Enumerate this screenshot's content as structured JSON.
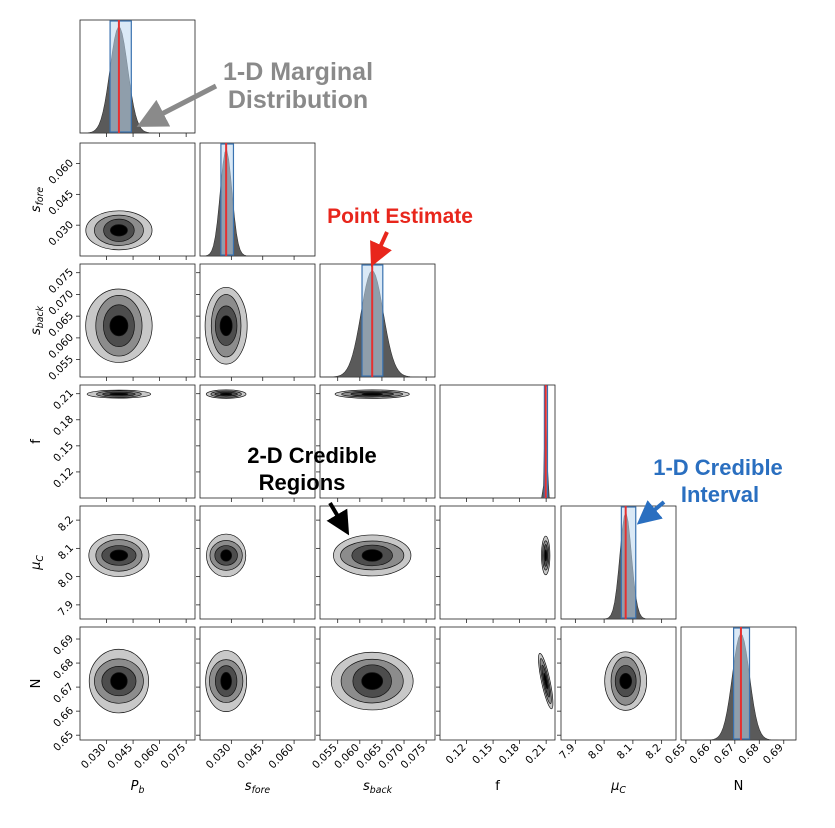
{
  "chart_data": {
    "type": "corner",
    "parameters": [
      {
        "id": "pb",
        "label": "P",
        "sub": "b",
        "range": [
          0.015,
          0.08
        ],
        "ticks": [
          0.03,
          0.045,
          0.06,
          0.075
        ],
        "tick_labels": [
          "0.030",
          "0.045",
          "0.060",
          "0.075"
        ],
        "estimate": 0.037,
        "interval": [
          0.032,
          0.044
        ],
        "sigma": 0.005
      },
      {
        "id": "sfore",
        "label": "s",
        "sub": "fore",
        "range": [
          0.015,
          0.07
        ],
        "ticks": [
          0.03,
          0.045,
          0.06
        ],
        "tick_labels": [
          "0.030",
          "0.045",
          "0.060"
        ],
        "estimate": 0.0275,
        "interval": [
          0.025,
          0.031
        ],
        "sigma": 0.0028
      },
      {
        "id": "sback",
        "label": "s",
        "sub": "back",
        "range": [
          0.051,
          0.077
        ],
        "ticks": [
          0.055,
          0.06,
          0.065,
          0.07,
          0.075
        ],
        "tick_labels": [
          "0.055",
          "0.060",
          "0.065",
          "0.070",
          "0.075"
        ],
        "estimate": 0.0628,
        "interval": [
          0.0605,
          0.0652
        ],
        "sigma": 0.0025
      },
      {
        "id": "f",
        "label": "f",
        "sub": "",
        "range": [
          0.09,
          0.22
        ],
        "ticks": [
          0.12,
          0.15,
          0.18,
          0.21
        ],
        "tick_labels": [
          "0.12",
          "0.15",
          "0.18",
          "0.21"
        ],
        "estimate": 0.2095,
        "interval": [
          0.208,
          0.2115
        ],
        "sigma": 0.0012
      },
      {
        "id": "muc",
        "label": "μ",
        "sub": "C",
        "range": [
          7.85,
          8.25
        ],
        "ticks": [
          7.9,
          8.0,
          8.1,
          8.2
        ],
        "tick_labels": [
          "7.9",
          "8.0",
          "8.1",
          "8.2"
        ],
        "estimate": 8.075,
        "interval": [
          8.06,
          8.11
        ],
        "sigma": 0.02
      },
      {
        "id": "n",
        "label": "N",
        "sub": "",
        "range": [
          0.648,
          0.695
        ],
        "ticks": [
          0.65,
          0.66,
          0.67,
          0.68,
          0.69
        ],
        "tick_labels": [
          "0.65",
          "0.66",
          "0.67",
          "0.68",
          "0.69"
        ],
        "estimate": 0.6725,
        "interval": [
          0.6695,
          0.676
        ],
        "sigma": 0.0035
      }
    ],
    "contour_levels": 4,
    "colors": {
      "fill": "#5a5a5a",
      "contour_light": "#c8c8c8",
      "contour_mid": "#8c8c8c",
      "contour_dark": "#4d4d4d",
      "core": "#000000",
      "estimate_line": "#e53030",
      "interval_fill": "#bcd7ee",
      "interval_edge": "#3a72b0"
    }
  },
  "annotations": {
    "marginal": {
      "line1": "1-D Marginal",
      "line2": "Distribution",
      "color": "#8a8a8a"
    },
    "point": {
      "line1": "Point Estimate",
      "color": "#e8261c"
    },
    "regions": {
      "line1": "2-D Credible",
      "line2": "Regions",
      "color": "#000000"
    },
    "interval": {
      "line1": "1-D Credible",
      "line2": "Interval",
      "color": "#2a6fc0"
    }
  }
}
